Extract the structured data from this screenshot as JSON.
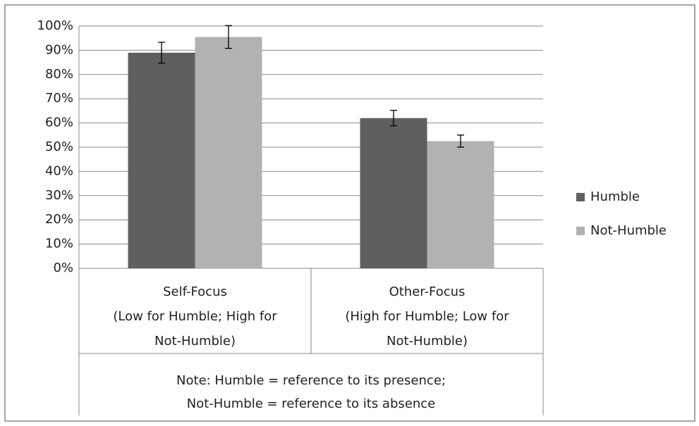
{
  "chart_data": {
    "type": "bar",
    "categories": [
      [
        "Self-Focus",
        "(Low for Humble; High for",
        "Not-Humble)"
      ],
      [
        "Other-Focus",
        "(High for Humble; Low for",
        "Not-Humble)"
      ]
    ],
    "series": [
      {
        "name": "Humble",
        "color": "#5f5f5f",
        "values": [
          89,
          62
        ],
        "errors": [
          4.3,
          3.2
        ]
      },
      {
        "name": "Not-Humble",
        "color": "#b2b2b2",
        "values": [
          95.5,
          52.5
        ],
        "errors": [
          4.7,
          2.5
        ]
      }
    ],
    "note": [
      "Note: Humble  = reference to its presence;",
      "Not-Humble = reference to its absence"
    ],
    "ylim": [
      0,
      100
    ],
    "yticks": [
      {
        "value": 0,
        "label": "0%"
      },
      {
        "value": 10,
        "label": "10%"
      },
      {
        "value": 20,
        "label": "20%"
      },
      {
        "value": 30,
        "label": "30%"
      },
      {
        "value": 40,
        "label": "40%"
      },
      {
        "value": 50,
        "label": "50%"
      },
      {
        "value": 60,
        "label": "60%"
      },
      {
        "value": 70,
        "label": "70%"
      },
      {
        "value": 80,
        "label": "80%"
      },
      {
        "value": 90,
        "label": "90%"
      },
      {
        "value": 100,
        "label": "100%"
      }
    ],
    "grid": true,
    "legend": "right"
  }
}
